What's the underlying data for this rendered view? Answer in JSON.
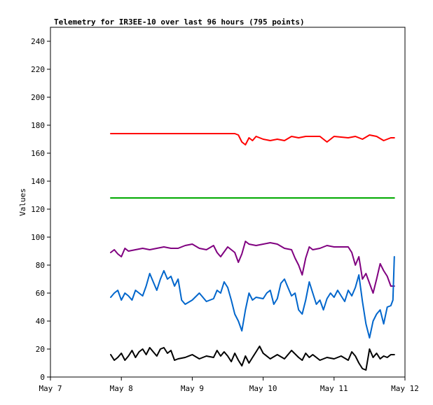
{
  "chart_data": {
    "type": "line",
    "title": "Telemetry for IR3EE-10 over last 96 hours (795 points)",
    "xlabel": "",
    "ylabel": "Values",
    "x_ticks": [
      "May 7",
      "May 8",
      "May 9",
      "May 10",
      "May 11",
      "May 12"
    ],
    "xlim": [
      "May 7",
      "May 12"
    ],
    "ylim": [
      0,
      250
    ],
    "y_ticks": [
      0,
      20,
      40,
      60,
      80,
      100,
      120,
      140,
      160,
      180,
      200,
      220,
      240
    ],
    "grid": false,
    "legend": "none",
    "series": [
      {
        "color": "#ff0000",
        "x": [
          7.85,
          8.0,
          8.2,
          8.5,
          8.8,
          9.2,
          9.5,
          9.6,
          9.65,
          9.7,
          9.75,
          9.8,
          9.85,
          9.9,
          10.0,
          10.1,
          10.2,
          10.3,
          10.4,
          10.5,
          10.6,
          10.7,
          10.8,
          10.9,
          11.0,
          11.2,
          11.3,
          11.4,
          11.5,
          11.6,
          11.7,
          11.8,
          11.85
        ],
        "y": [
          174,
          174,
          174,
          174,
          174,
          174,
          174,
          174,
          173,
          168,
          166,
          171,
          169,
          172,
          170,
          169,
          170,
          169,
          172,
          171,
          172,
          172,
          172,
          168,
          172,
          171,
          172,
          170,
          173,
          172,
          169,
          171,
          171
        ]
      },
      {
        "color": "#00aa00",
        "x": [
          7.85,
          11.85
        ],
        "y": [
          128,
          128
        ]
      },
      {
        "color": "#800080",
        "x": [
          7.85,
          7.9,
          7.95,
          8.0,
          8.05,
          8.1,
          8.2,
          8.3,
          8.4,
          8.5,
          8.6,
          8.7,
          8.8,
          8.9,
          9.0,
          9.1,
          9.2,
          9.3,
          9.35,
          9.4,
          9.5,
          9.55,
          9.6,
          9.65,
          9.7,
          9.75,
          9.8,
          9.9,
          10.0,
          10.1,
          10.2,
          10.3,
          10.4,
          10.45,
          10.5,
          10.55,
          10.6,
          10.65,
          10.7,
          10.8,
          10.9,
          11.0,
          11.1,
          11.2,
          11.25,
          11.3,
          11.35,
          11.4,
          11.45,
          11.5,
          11.55,
          11.6,
          11.65,
          11.7,
          11.75,
          11.8,
          11.85
        ],
        "y": [
          89,
          91,
          88,
          86,
          92,
          90,
          91,
          92,
          91,
          92,
          93,
          92,
          92,
          94,
          95,
          92,
          91,
          94,
          89,
          86,
          93,
          91,
          89,
          82,
          88,
          97,
          95,
          94,
          95,
          96,
          95,
          92,
          91,
          85,
          80,
          73,
          85,
          93,
          91,
          92,
          94,
          93,
          93,
          93,
          89,
          80,
          86,
          70,
          74,
          67,
          60,
          70,
          81,
          76,
          72,
          65,
          65
        ]
      },
      {
        "color": "#0066cc",
        "x": [
          7.85,
          7.9,
          7.95,
          8.0,
          8.05,
          8.1,
          8.15,
          8.2,
          8.25,
          8.3,
          8.35,
          8.4,
          8.45,
          8.5,
          8.55,
          8.6,
          8.65,
          8.7,
          8.75,
          8.8,
          8.85,
          8.9,
          9.0,
          9.1,
          9.2,
          9.3,
          9.35,
          9.4,
          9.45,
          9.5,
          9.55,
          9.6,
          9.65,
          9.7,
          9.75,
          9.8,
          9.85,
          9.9,
          10.0,
          10.05,
          10.1,
          10.15,
          10.2,
          10.25,
          10.3,
          10.35,
          10.4,
          10.45,
          10.5,
          10.55,
          10.6,
          10.65,
          10.7,
          10.75,
          10.8,
          10.85,
          10.9,
          10.95,
          11.0,
          11.05,
          11.1,
          11.15,
          11.2,
          11.25,
          11.3,
          11.35,
          11.4,
          11.45,
          11.5,
          11.55,
          11.6,
          11.65,
          11.7,
          11.75,
          11.8,
          11.83,
          11.85
        ],
        "y": [
          57,
          60,
          62,
          55,
          60,
          58,
          55,
          62,
          60,
          58,
          65,
          74,
          68,
          62,
          70,
          76,
          70,
          72,
          65,
          70,
          55,
          52,
          55,
          60,
          54,
          56,
          62,
          60,
          68,
          64,
          55,
          45,
          40,
          33,
          48,
          60,
          55,
          57,
          56,
          60,
          62,
          52,
          56,
          67,
          70,
          64,
          58,
          60,
          48,
          45,
          55,
          68,
          60,
          52,
          55,
          48,
          56,
          60,
          57,
          62,
          58,
          54,
          62,
          58,
          64,
          73,
          54,
          38,
          28,
          40,
          45,
          48,
          38,
          50,
          51,
          55,
          86
        ]
      },
      {
        "color": "#000000",
        "x": [
          7.85,
          7.9,
          7.95,
          8.0,
          8.05,
          8.1,
          8.15,
          8.2,
          8.25,
          8.3,
          8.35,
          8.4,
          8.45,
          8.5,
          8.55,
          8.6,
          8.65,
          8.7,
          8.75,
          8.8,
          8.9,
          9.0,
          9.1,
          9.2,
          9.3,
          9.35,
          9.4,
          9.45,
          9.5,
          9.55,
          9.6,
          9.65,
          9.7,
          9.75,
          9.8,
          9.85,
          9.9,
          9.95,
          10.0,
          10.1,
          10.2,
          10.3,
          10.4,
          10.5,
          10.55,
          10.6,
          10.65,
          10.7,
          10.8,
          10.9,
          11.0,
          11.1,
          11.2,
          11.25,
          11.3,
          11.35,
          11.4,
          11.45,
          11.5,
          11.55,
          11.6,
          11.65,
          11.7,
          11.75,
          11.8,
          11.85
        ],
        "y": [
          16,
          12,
          14,
          17,
          12,
          15,
          19,
          14,
          18,
          20,
          16,
          21,
          18,
          15,
          20,
          21,
          17,
          19,
          12,
          13,
          14,
          16,
          13,
          15,
          14,
          19,
          15,
          18,
          15,
          11,
          17,
          12,
          8,
          15,
          10,
          14,
          18,
          22,
          17,
          13,
          16,
          13,
          19,
          14,
          12,
          17,
          14,
          16,
          12,
          14,
          13,
          15,
          12,
          18,
          15,
          10,
          6,
          5,
          20,
          14,
          17,
          13,
          15,
          14,
          16,
          16
        ]
      }
    ]
  }
}
